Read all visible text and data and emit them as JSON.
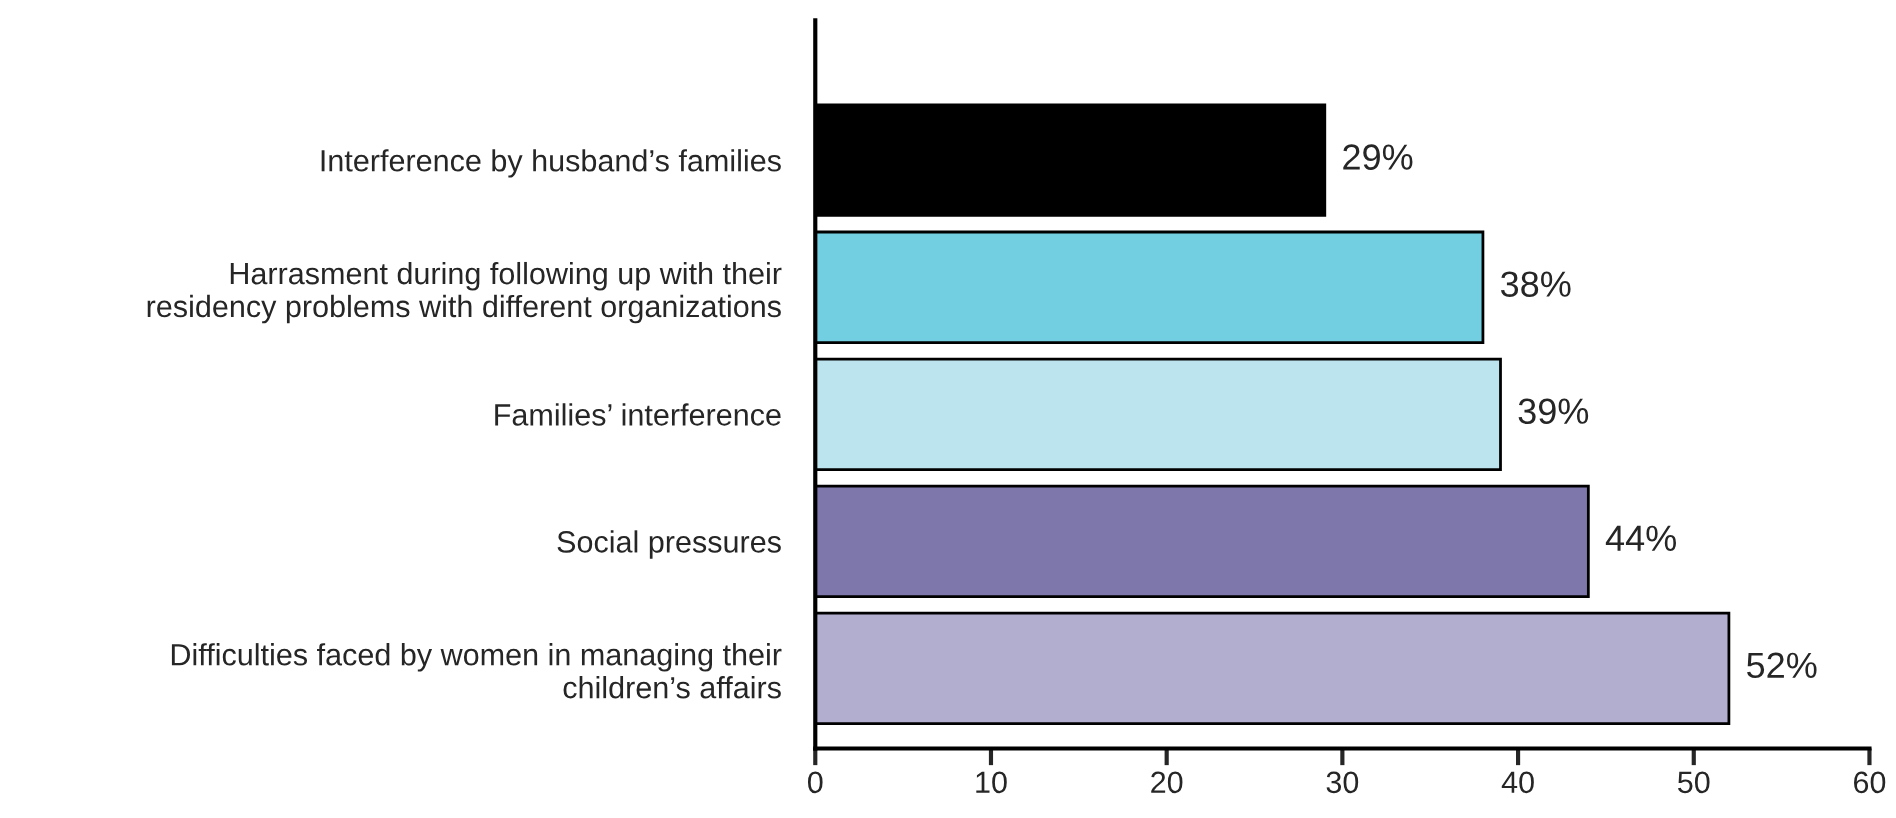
{
  "chart_data": {
    "type": "bar",
    "orientation": "horizontal",
    "categories": [
      "Interference by husband’s families",
      "Harrasment during following up with their\nresidency problems with different organizations",
      "Families’ interference",
      "Social pressures",
      "Difficulties faced by women in managing their\nchildren’s affairs"
    ],
    "values": [
      29,
      38,
      39,
      44,
      52
    ],
    "colors": [
      "#000000",
      "#72cfe1",
      "#bce4ee",
      "#7d77ac",
      "#b2aed0"
    ],
    "value_labels": [
      "29%",
      "38%",
      "39%",
      "44%",
      "52%"
    ],
    "xlim": [
      0,
      60
    ],
    "xticks": [
      0,
      10,
      20,
      30,
      40,
      50,
      60
    ],
    "grid": false,
    "legend": false
  }
}
